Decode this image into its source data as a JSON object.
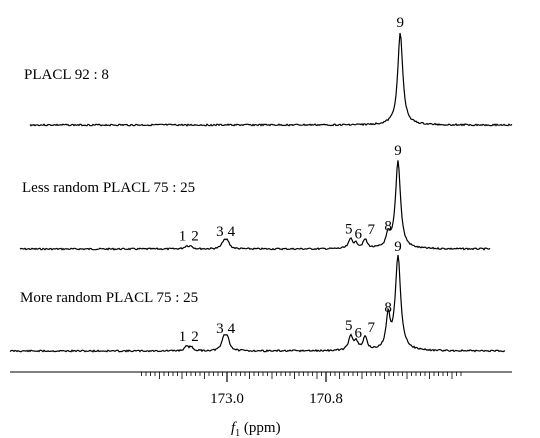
{
  "chart_data": {
    "type": "line",
    "title": "",
    "xlabel": {
      "main": "f",
      "sub": "1",
      "unit": " (ppm)"
    },
    "x_reversed": true,
    "xlim": [
      174.9,
      167.75
    ],
    "major_ticks": [
      173.0,
      170.8
    ],
    "tick_labels": [
      "173.0",
      "170.8"
    ],
    "minor_tick_step": 0.1,
    "grid": false,
    "legend": "none",
    "series": [
      {
        "name": "PLACL 92 : 8",
        "peaks": [
          {
            "label": "9",
            "ppm": 169.15,
            "height": 1.0
          }
        ]
      },
      {
        "name": "Less random PLACL 75 : 25",
        "peaks": [
          {
            "label": "1",
            "ppm": 173.9,
            "height": 0.03
          },
          {
            "label": "2",
            "ppm": 173.8,
            "height": 0.03
          },
          {
            "label": "3",
            "ppm": 173.07,
            "height": 0.08
          },
          {
            "label": "4",
            "ppm": 172.99,
            "height": 0.08
          },
          {
            "label": "5",
            "ppm": 170.25,
            "height": 0.11
          },
          {
            "label": "6",
            "ppm": 170.13,
            "height": 0.05
          },
          {
            "label": "7",
            "ppm": 169.93,
            "height": 0.1
          },
          {
            "label": "8",
            "ppm": 169.42,
            "height": 0.14
          },
          {
            "label": "9",
            "ppm": 169.2,
            "height": 1.0
          }
        ]
      },
      {
        "name": "More random PLACL 75 : 25",
        "peaks": [
          {
            "label": "1",
            "ppm": 173.9,
            "height": 0.04
          },
          {
            "label": "2",
            "ppm": 173.8,
            "height": 0.04
          },
          {
            "label": "3",
            "ppm": 173.07,
            "height": 0.13
          },
          {
            "label": "4",
            "ppm": 172.99,
            "height": 0.13
          },
          {
            "label": "5",
            "ppm": 170.25,
            "height": 0.16
          },
          {
            "label": "6",
            "ppm": 170.13,
            "height": 0.08
          },
          {
            "label": "7",
            "ppm": 169.93,
            "height": 0.14
          },
          {
            "label": "8",
            "ppm": 169.42,
            "height": 0.35
          },
          {
            "label": "9",
            "ppm": 169.2,
            "height": 1.0
          }
        ]
      }
    ]
  }
}
